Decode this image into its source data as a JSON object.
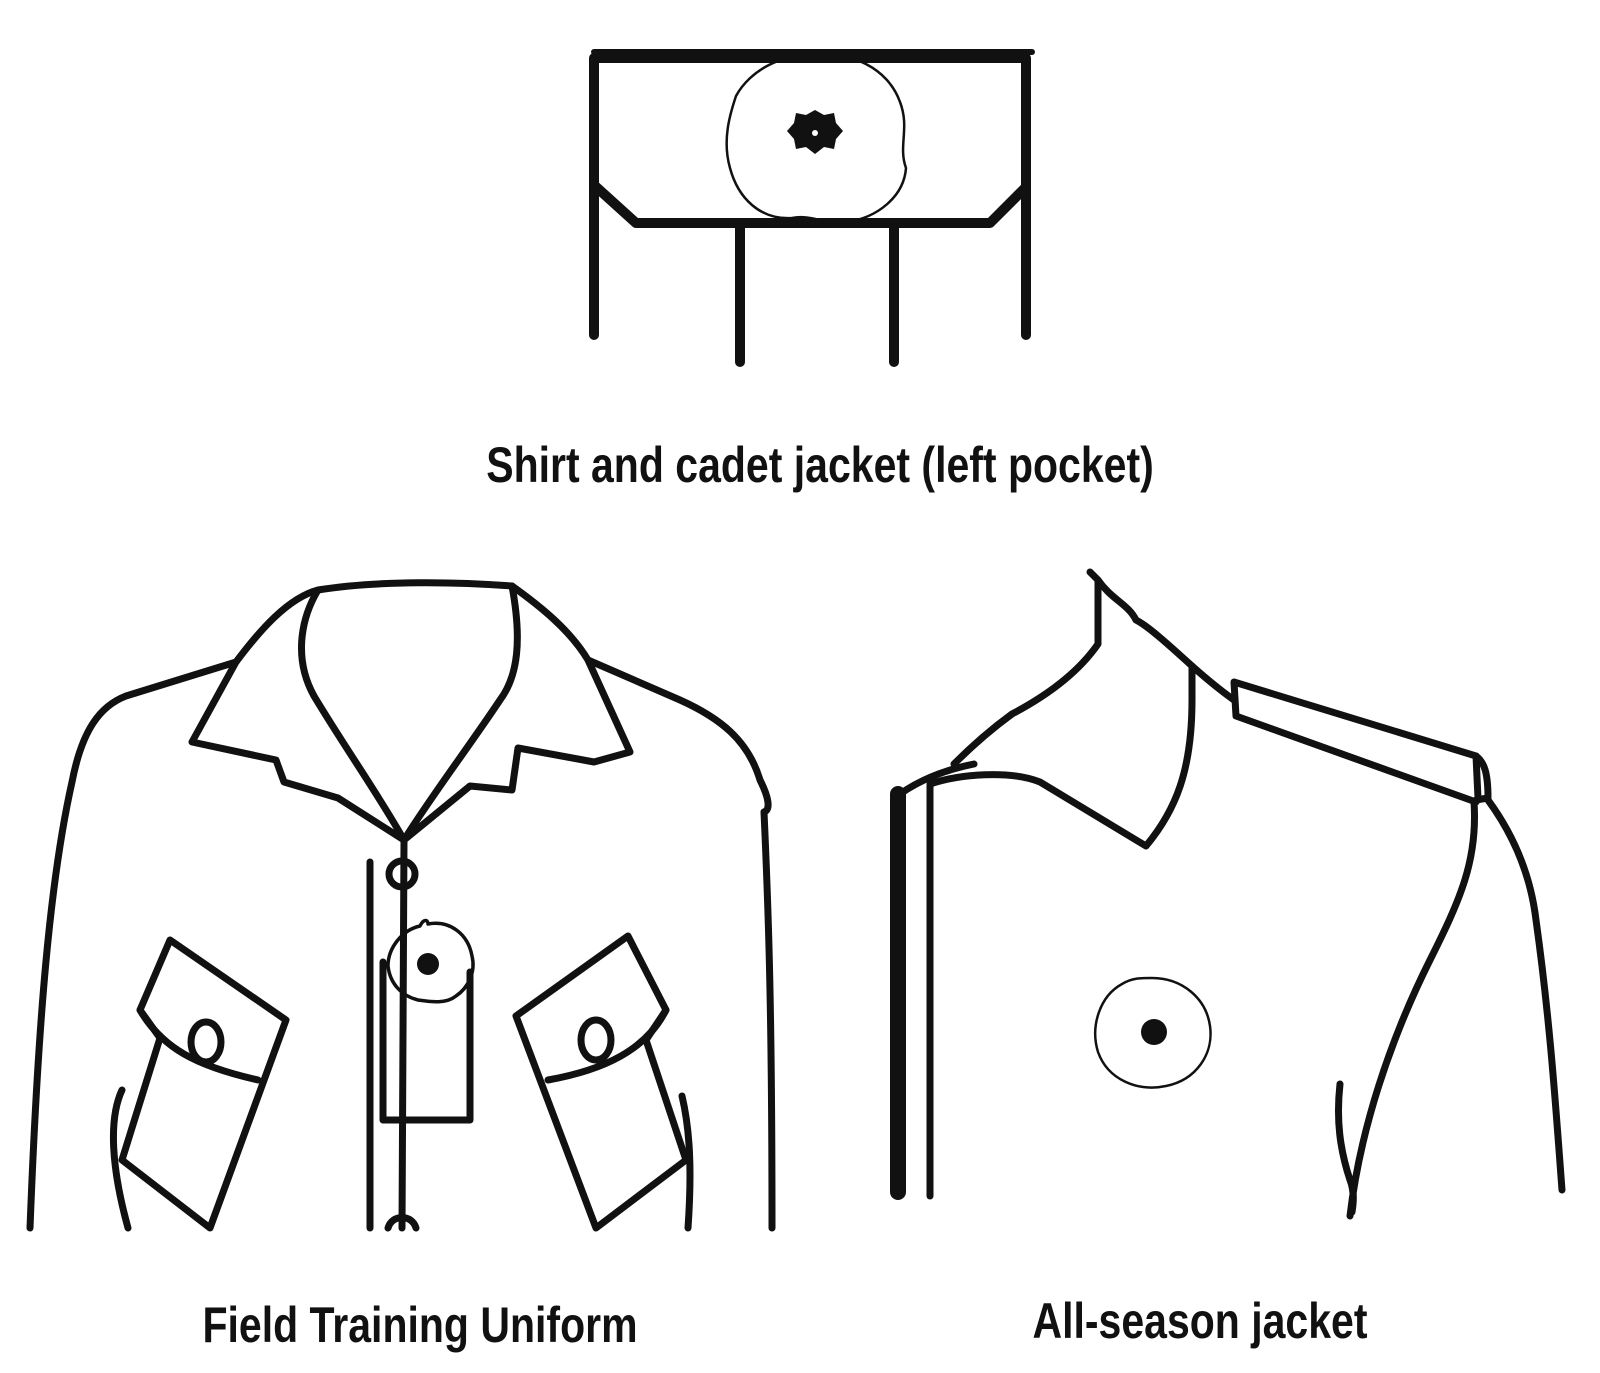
{
  "colors": {
    "line": "#111111",
    "background": "#ffffff",
    "poppy_center": "#111111"
  },
  "captions": {
    "shirt": "Shirt and cadet jacket (left pocket)",
    "field_training": "Field Training Uniform",
    "all_season": "All-season jacket"
  }
}
